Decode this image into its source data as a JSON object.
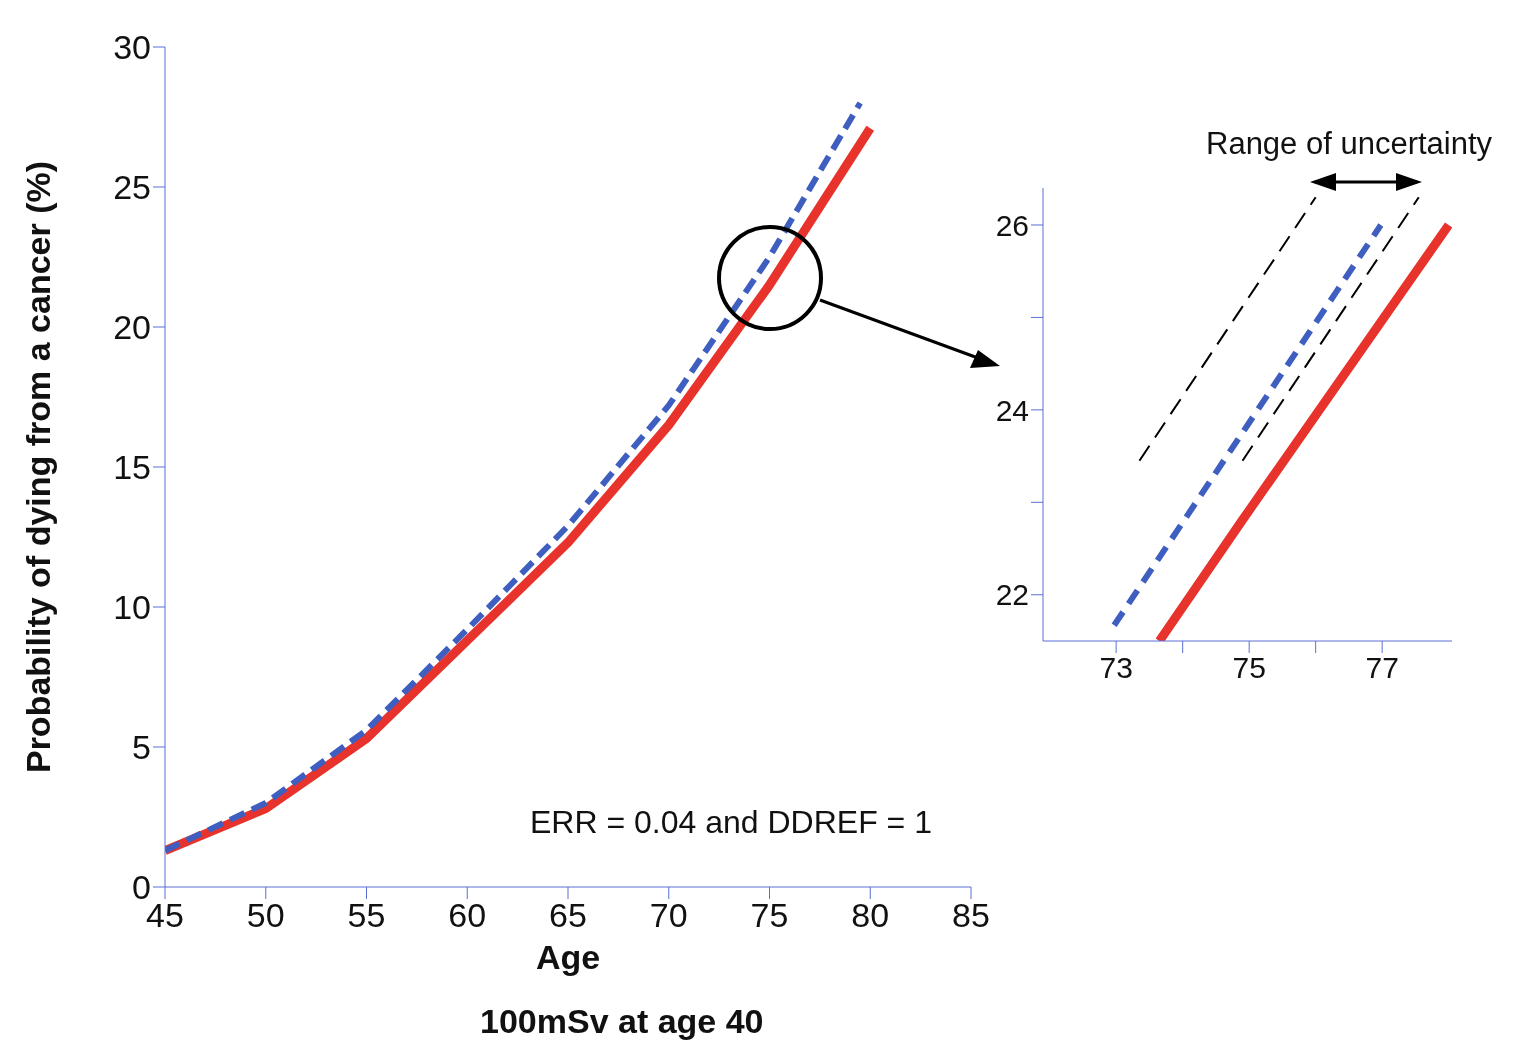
{
  "chart_data": [
    {
      "type": "line",
      "xlabel": "Age",
      "ylabel": "Probability of dying from a cancer (%)",
      "annotations": [
        "ERR = 0.04 and DDREF = 1",
        "100mSv at age 40"
      ],
      "xlim": [
        45,
        85
      ],
      "xticks": [
        45,
        50,
        55,
        60,
        65,
        70,
        75,
        80,
        85
      ],
      "ylim": [
        0,
        30
      ],
      "yticks": [
        0,
        5,
        10,
        15,
        20,
        25,
        30
      ],
      "grid": false,
      "legend": false,
      "marker": "none",
      "series": [
        {
          "color": "#e8322c",
          "line_style": "solid",
          "x": [
            45,
            50,
            55,
            60,
            65,
            70,
            75,
            80
          ],
          "values": [
            1.3,
            2.8,
            5.3,
            8.8,
            12.3,
            16.5,
            21.5,
            27.1
          ]
        },
        {
          "color": "#3f5fc0",
          "line_style": "dashed",
          "x": [
            45,
            50,
            55,
            60,
            65,
            70,
            75,
            79.5
          ],
          "values": [
            1.3,
            3.0,
            5.6,
            9.2,
            12.9,
            17.2,
            22.5,
            28.0
          ]
        }
      ]
    },
    {
      "type": "line",
      "annotations": [
        "Range of uncertainty"
      ],
      "xlim": [
        71.9,
        78.05
      ],
      "xticks": [
        73,
        {
          "value": 74,
          "label": null
        },
        75,
        {
          "value": 76,
          "label": null
        },
        77
      ],
      "ylim": [
        21.5,
        26.4
      ],
      "yticks": [
        22,
        {
          "value": 23,
          "label": null
        },
        24,
        {
          "value": 25,
          "label": null
        },
        26
      ],
      "grid": false,
      "legend": false,
      "marker": "none",
      "series": [
        {
          "color": "#000000",
          "line_style": "dashed",
          "x": [
            73.35,
            76.0
          ],
          "values": [
            23.45,
            26.3
          ]
        },
        {
          "color": "#000000",
          "line_style": "dashed",
          "x": [
            74.9,
            77.55
          ],
          "values": [
            23.45,
            26.3
          ]
        },
        {
          "color": "#e8322c",
          "line_style": "solid",
          "x": [
            73.65,
            74.9,
            78.0
          ],
          "values": [
            21.5,
            22.81,
            26.0
          ]
        },
        {
          "color": "#3f5fc0",
          "line_style": "dashed",
          "x": [
            72.97,
            76.98
          ],
          "values": [
            21.67,
            26.0
          ]
        }
      ]
    }
  ]
}
